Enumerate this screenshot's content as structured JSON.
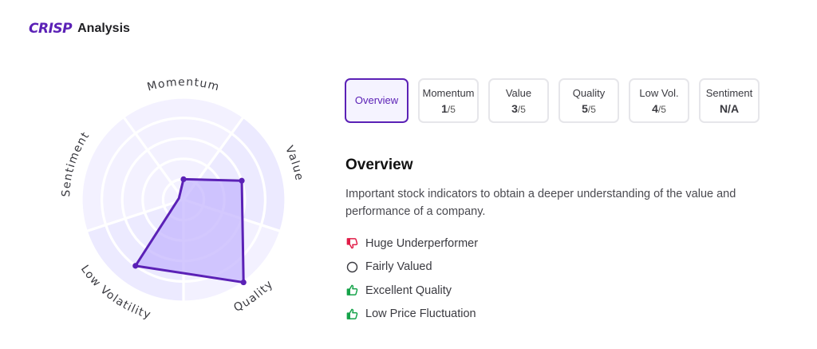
{
  "header": {
    "logo_text": "CRISP",
    "title": "Analysis"
  },
  "tabs": [
    {
      "label": "Overview",
      "score": null,
      "max": null,
      "active": true
    },
    {
      "label": "Momentum",
      "score": "1",
      "max": "/5",
      "active": false
    },
    {
      "label": "Value",
      "score": "3",
      "max": "/5",
      "active": false
    },
    {
      "label": "Quality",
      "score": "5",
      "max": "/5",
      "active": false
    },
    {
      "label": "Low Vol.",
      "score": "4",
      "max": "/5",
      "active": false
    },
    {
      "label": "Sentiment",
      "score": "N/A",
      "max": "",
      "active": false
    }
  ],
  "overview": {
    "title": "Overview",
    "description": "Important stock indicators to obtain a deeper understanding of the value and performance of a company.",
    "indicators": [
      {
        "text": "Huge Underperformer",
        "icon": "thumbs-down-icon",
        "color": "#e11d48"
      },
      {
        "text": "Fairly Valued",
        "icon": "circle-outline-icon",
        "color": "#3a3a40"
      },
      {
        "text": "Excellent Quality",
        "icon": "thumbs-up-icon",
        "color": "#16a34a"
      },
      {
        "text": "Low Price Fluctuation",
        "icon": "thumbs-up-icon",
        "color": "#16a34a"
      }
    ]
  },
  "radar": {
    "axes": [
      "Momentum",
      "Value",
      "Quality",
      "Low Volatility",
      "Sentiment"
    ],
    "scores": [
      1,
      3,
      5,
      4,
      0
    ],
    "max": 5,
    "accent": "#5b21b6",
    "fill": "#c4b5fd",
    "bg": "#f1efff"
  }
}
